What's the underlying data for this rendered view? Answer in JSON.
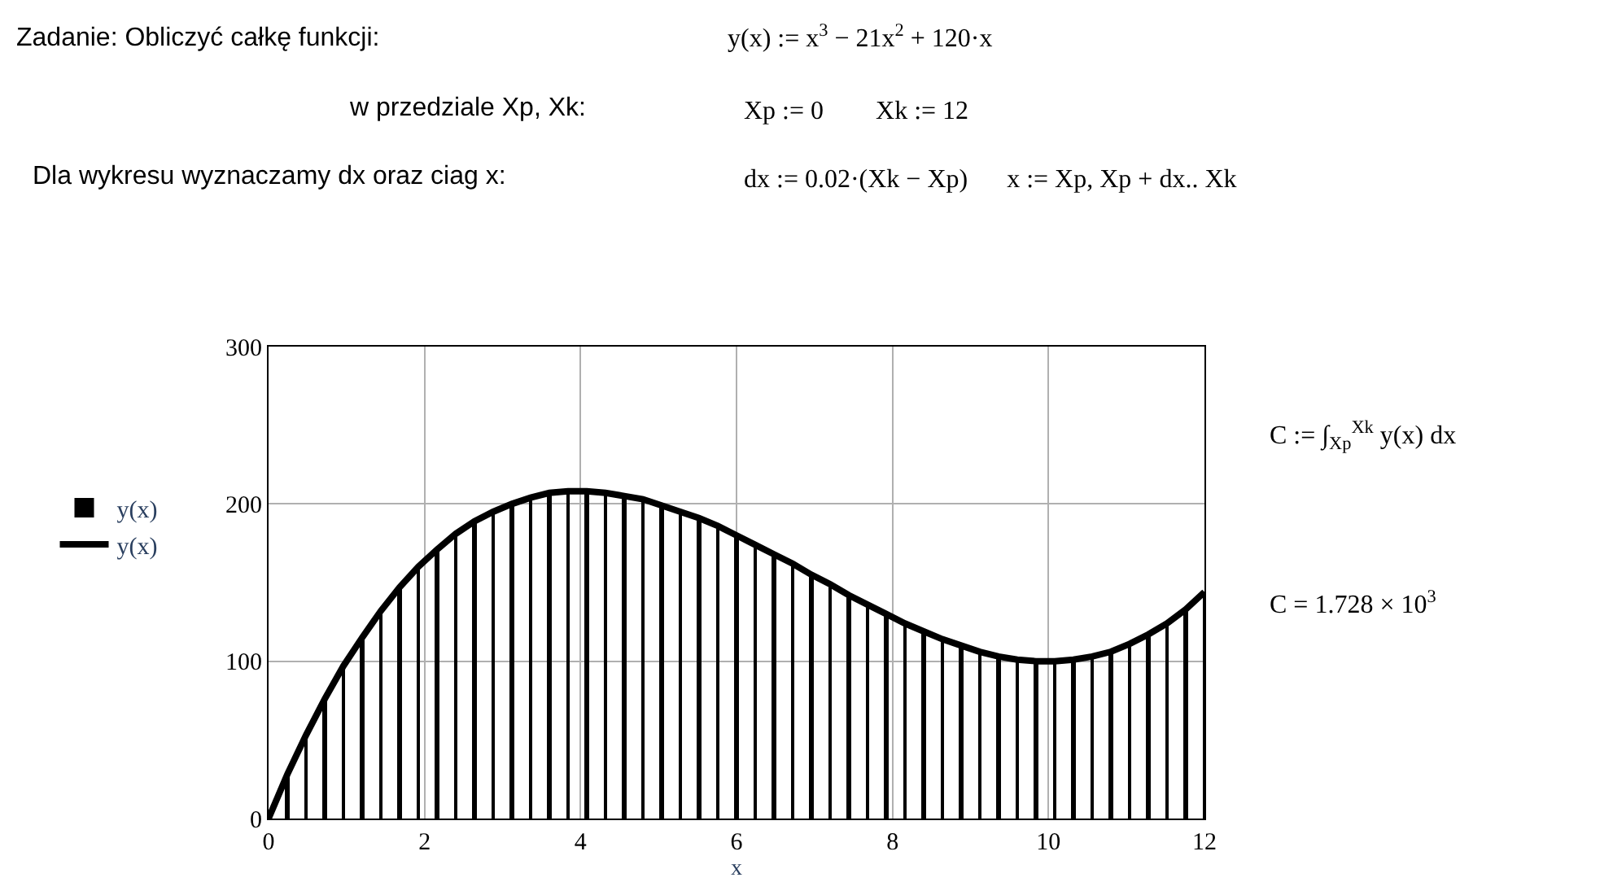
{
  "chart_data": {
    "type": "bar",
    "xlabel": "x",
    "annotations": [
      "Zadanie: Obliczyć całkę funkcji:",
      "y(x) := x$^{3}$ − 21x$^{2}$ + 120·x",
      "w przedziale Xp, Xk:",
      "Xp := 0        Xk := 12",
      "Dla wykresu wyznaczamy dx oraz ciag x:",
      "dx := 0.02·(Xk − Xp)      x := Xp, Xp + dx.. Xk",
      "C := ∫$_{Xp}$$^{Xk}$ y(x) dx",
      "C = 1.728 × 10$^{3}$"
    ],
    "x": [
      0,
      0.24,
      0.48,
      0.72,
      0.96,
      1.2,
      1.44,
      1.68,
      1.92,
      2.16,
      2.4,
      2.64,
      2.88,
      3.12,
      3.36,
      3.6,
      3.84,
      4.08,
      4.32,
      4.56,
      4.8,
      5.04,
      5.28,
      5.52,
      5.76,
      6,
      6.24,
      6.48,
      6.72,
      6.96,
      7.2,
      7.44,
      7.68,
      7.92,
      8.16,
      8.4,
      8.64,
      8.88,
      9.12,
      9.36,
      9.6,
      9.84,
      10.08,
      10.32,
      10.56,
      10.8,
      11.04,
      11.28,
      11.52,
      11.76,
      12
    ],
    "series": [
      {
        "name": "y(x)",
        "color": "#000000",
        "values": [
          0,
          28,
          53,
          76,
          97,
          115,
          132,
          147,
          160,
          171,
          181,
          189,
          195,
          200,
          204,
          207,
          208,
          208,
          207,
          205,
          203,
          199,
          195,
          191,
          186,
          180,
          174,
          168,
          162,
          155,
          149,
          142,
          136,
          130,
          124,
          119,
          114,
          110,
          106,
          103,
          101,
          100,
          100,
          101,
          103,
          106,
          111,
          117,
          124,
          133,
          144
        ]
      },
      {
        "name": "y(x)",
        "type": "line",
        "color": "#000000",
        "values": [
          0,
          28,
          53,
          76,
          97,
          115,
          132,
          147,
          160,
          171,
          181,
          189,
          195,
          200,
          204,
          207,
          208,
          208,
          207,
          205,
          203,
          199,
          195,
          191,
          186,
          180,
          174,
          168,
          162,
          155,
          149,
          142,
          136,
          130,
          124,
          119,
          114,
          110,
          106,
          103,
          101,
          100,
          100,
          101,
          103,
          106,
          111,
          117,
          124,
          133,
          144
        ]
      }
    ],
    "xlim": [
      0,
      12
    ],
    "xticks": [
      0,
      2,
      4,
      6,
      8,
      10,
      12
    ],
    "ylim": [
      0,
      300
    ],
    "yticks": [
      0,
      100,
      200,
      300
    ],
    "grid": true,
    "legend": "left",
    "line_style": "solid",
    "marker": "none"
  }
}
